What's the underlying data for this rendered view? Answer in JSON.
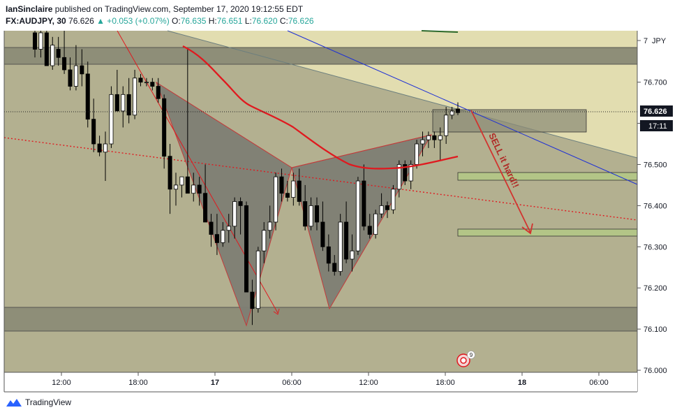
{
  "header": {
    "author": "IanSinclaire",
    "published": "published on TradingView.com, September 17, 2020 19:12:55 EDT",
    "symbol": "FX:AUDJPY, 30",
    "last": "76.626",
    "change": "▲ +0.053 (+0.07%)",
    "o_label": "O:",
    "o": "76.635",
    "h_label": "H:",
    "h": "76.651",
    "l_label": "L:",
    "l": "76.620",
    "c_label": "C:",
    "c": "76.626"
  },
  "footer": {
    "brand": "TradingView"
  },
  "annotation": {
    "sell_text": "SELL it hard!!",
    "marker_count": "9"
  },
  "price_badge": {
    "price": "76.626",
    "countdown": "17:11"
  },
  "colors": {
    "chart_bg": "#b3b090",
    "pale_zone": "#e2ddb0",
    "grey_zone": "#8e8e78",
    "candle_up": "#ffffff",
    "candle_down": "#000000",
    "red_line": "#e0191f",
    "blue_line": "#1d2fd6",
    "green_box": "#b3c587",
    "harmonic_fill": "#7e7e74",
    "harmonic_stroke": "#c33a3a"
  },
  "chart_data": {
    "type": "candlestick",
    "symbol": "FX:AUDJPY",
    "interval": "30",
    "currency": "JPY",
    "y_ticks": [
      "76.700",
      "76.600",
      "76.500",
      "76.400",
      "76.300",
      "76.200",
      "76.100",
      "76.000"
    ],
    "x_ticks": [
      "12:00",
      "18:00",
      "17",
      "06:00",
      "12:00",
      "18:00",
      "18",
      "06:00"
    ],
    "ylim": [
      75.995,
      76.825
    ],
    "candles": [
      [
        76.82,
        76.85,
        76.76,
        76.78
      ],
      [
        76.78,
        76.84,
        76.76,
        76.82
      ],
      [
        76.82,
        76.83,
        76.74,
        76.74
      ],
      [
        76.74,
        76.81,
        76.73,
        76.79
      ],
      [
        76.78,
        76.81,
        76.74,
        76.76
      ],
      [
        76.76,
        76.83,
        76.72,
        76.73
      ],
      [
        76.73,
        76.76,
        76.68,
        76.69
      ],
      [
        76.69,
        76.79,
        76.68,
        76.74
      ],
      [
        76.74,
        76.78,
        76.69,
        76.72
      ],
      [
        76.72,
        76.75,
        76.59,
        76.61
      ],
      [
        76.61,
        76.66,
        76.53,
        76.55
      ],
      [
        76.55,
        76.57,
        76.52,
        76.53
      ],
      [
        76.53,
        76.58,
        76.46,
        76.55
      ],
      [
        76.55,
        76.69,
        76.54,
        76.67
      ],
      [
        76.67,
        76.73,
        76.63,
        76.63
      ],
      [
        76.63,
        76.69,
        76.59,
        76.67
      ],
      [
        76.67,
        76.71,
        76.6,
        76.62
      ],
      [
        76.62,
        76.73,
        76.61,
        76.71
      ],
      [
        76.71,
        76.72,
        76.69,
        76.7
      ],
      [
        76.7,
        76.71,
        76.69,
        76.7
      ],
      [
        76.7,
        76.71,
        76.68,
        76.69
      ],
      [
        76.69,
        76.71,
        76.65,
        76.66
      ],
      [
        76.66,
        76.67,
        76.49,
        76.52
      ],
      [
        76.52,
        76.55,
        76.38,
        76.44
      ],
      [
        76.44,
        76.48,
        76.4,
        76.45
      ],
      [
        76.45,
        76.47,
        76.42,
        76.47
      ],
      [
        76.47,
        76.78,
        76.43,
        76.43
      ],
      [
        76.43,
        76.48,
        76.41,
        76.45
      ],
      [
        76.45,
        76.47,
        76.4,
        76.43
      ],
      [
        76.43,
        76.5,
        76.36,
        76.36
      ],
      [
        76.36,
        76.38,
        76.3,
        76.33
      ],
      [
        76.33,
        76.38,
        76.28,
        76.31
      ],
      [
        76.31,
        76.36,
        76.3,
        76.34
      ],
      [
        76.34,
        76.38,
        76.31,
        76.35
      ],
      [
        76.35,
        76.42,
        76.32,
        76.41
      ],
      [
        76.41,
        76.42,
        76.33,
        76.4
      ],
      [
        76.4,
        76.41,
        76.19,
        76.19
      ],
      [
        76.19,
        76.22,
        76.11,
        76.15
      ],
      [
        76.15,
        76.3,
        76.14,
        76.29
      ],
      [
        76.29,
        76.36,
        76.26,
        76.34
      ],
      [
        76.34,
        76.4,
        76.32,
        76.36
      ],
      [
        76.36,
        76.48,
        76.34,
        76.47
      ],
      [
        76.47,
        76.49,
        76.41,
        76.43
      ],
      [
        76.43,
        76.46,
        76.41,
        76.42
      ],
      [
        76.42,
        76.48,
        76.4,
        76.46
      ],
      [
        76.46,
        76.49,
        76.4,
        76.41
      ],
      [
        76.41,
        76.45,
        76.34,
        76.35
      ],
      [
        76.35,
        76.42,
        76.34,
        76.4
      ],
      [
        76.4,
        76.42,
        76.34,
        76.36
      ],
      [
        76.36,
        76.41,
        76.29,
        76.3
      ],
      [
        76.3,
        76.33,
        76.24,
        76.26
      ],
      [
        76.26,
        76.28,
        76.23,
        76.24
      ],
      [
        76.24,
        76.38,
        76.23,
        76.36
      ],
      [
        76.36,
        76.41,
        76.26,
        76.27
      ],
      [
        76.27,
        76.33,
        76.24,
        76.29
      ],
      [
        76.29,
        76.47,
        76.28,
        76.46
      ],
      [
        76.46,
        76.5,
        76.34,
        76.35
      ],
      [
        76.35,
        76.38,
        76.32,
        76.33
      ],
      [
        76.33,
        76.39,
        76.32,
        76.38
      ],
      [
        76.38,
        76.43,
        76.37,
        76.4
      ],
      [
        76.4,
        76.41,
        76.37,
        76.39
      ],
      [
        76.39,
        76.45,
        76.38,
        76.44
      ],
      [
        76.44,
        76.51,
        76.42,
        76.5
      ],
      [
        76.5,
        76.51,
        76.45,
        76.46
      ],
      [
        76.46,
        76.51,
        76.44,
        76.5
      ],
      [
        76.5,
        76.56,
        76.49,
        76.55
      ],
      [
        76.55,
        76.58,
        76.52,
        76.56
      ],
      [
        76.56,
        76.58,
        76.54,
        76.57
      ],
      [
        76.57,
        76.58,
        76.54,
        76.56
      ],
      [
        76.56,
        76.59,
        76.51,
        76.57
      ],
      [
        76.57,
        76.64,
        76.55,
        76.62
      ],
      [
        76.62,
        76.64,
        76.61,
        76.63
      ],
      [
        76.635,
        76.651,
        76.62,
        76.626
      ]
    ]
  }
}
